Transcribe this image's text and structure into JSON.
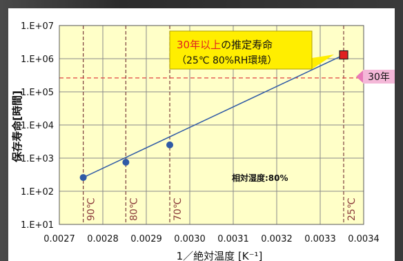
{
  "chart_data": {
    "type": "scatter",
    "ylabel": "保存寿命[時間]",
    "xlabel": "1／絶対温度 [K⁻¹]",
    "yscale": "log",
    "ylim": [
      10,
      10000000
    ],
    "xlim": [
      0.0027,
      0.0034
    ],
    "y_ticks": [
      "1.E+01",
      "1.E+02",
      "1.E+03",
      "1.E+04",
      "1.E+05",
      "1.E+06",
      "1.E+07"
    ],
    "x_ticks": [
      "0.0027",
      "0.0028",
      "0.0029",
      "0.0030",
      "0.0031",
      "0.0032",
      "0.0033",
      "0.0034"
    ],
    "grid": true,
    "series": [
      {
        "values": [
          {
            "x": 0.002755,
            "y": 260
          },
          {
            "x": 0.002853,
            "y": 750
          },
          {
            "x": 0.002954,
            "y": 2500
          }
        ],
        "color": "#2f5aa6",
        "marker": "circle"
      }
    ],
    "fit_line": {
      "from": {
        "x": 0.002755,
        "y": 260
      },
      "to": {
        "x": 0.003354,
        "y": 1300000
      },
      "color": "#2f5aa6"
    },
    "highlight_point": {
      "x": 0.003354,
      "y": 1300000,
      "color": "#e02020",
      "marker": "square"
    },
    "reference_line": {
      "y": 262800,
      "label": "30年",
      "color": "#e04040"
    },
    "temperature_markers": [
      {
        "x": 0.002755,
        "label": "90℃"
      },
      {
        "x": 0.002853,
        "label": "80℃"
      },
      {
        "x": 0.002954,
        "label": "70℃"
      },
      {
        "x": 0.003354,
        "label": "25℃"
      }
    ],
    "annotation": {
      "line1_highlight": "30年以上",
      "line1_rest": "の推定寿命",
      "line2": "（25℃ 80%RH環境）"
    },
    "humidity_note": "相対湿度:80%"
  },
  "colors": {
    "plot_bg": "#ffffc8",
    "grid": "#8a8a8a",
    "temp_line": "#7a3b3b",
    "temp_label": "#8b3a3a",
    "annotation_bg": "#ffee00",
    "annotation_highlight": "#e02020",
    "ref_badge_bg": "#f4b8d8",
    "ref_arrow": "#e87ab8"
  }
}
